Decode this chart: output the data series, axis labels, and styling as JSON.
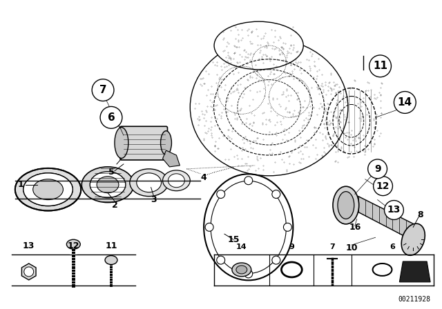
{
  "background_color": "#ffffff",
  "watermark": "00211928",
  "line_color": "#000000",
  "gray_light": "#cccccc",
  "gray_dark": "#888888",
  "gray_med": "#aaaaaa"
}
